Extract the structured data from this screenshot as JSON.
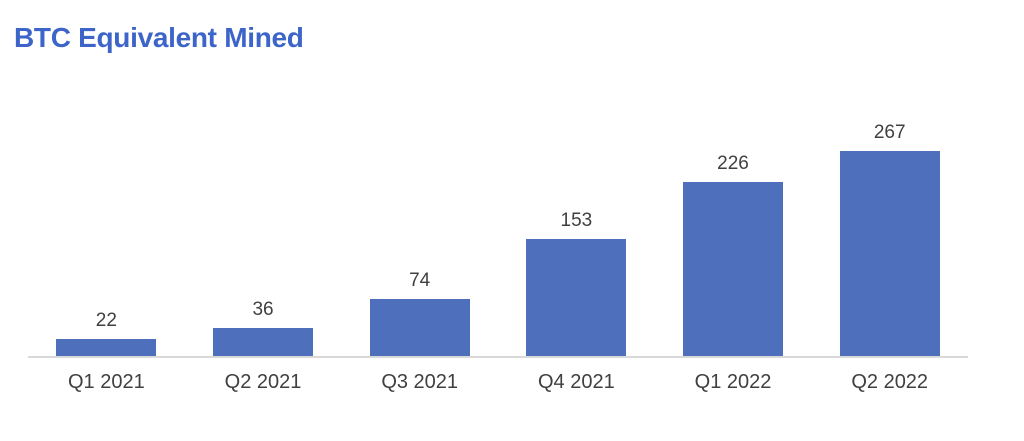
{
  "title": "BTC Equivalent Mined",
  "title_color": "#3d64c8",
  "chart_data": {
    "type": "bar",
    "title": "BTC Equivalent Mined",
    "categories": [
      "Q1 2021",
      "Q2 2021",
      "Q3 2021",
      "Q4 2021",
      "Q1 2022",
      "Q2 2022"
    ],
    "values": [
      22,
      36,
      74,
      153,
      226,
      267
    ],
    "data_labels": [
      22,
      36,
      74,
      153,
      226,
      267
    ],
    "xlabel": "",
    "ylabel": "",
    "ylim": [
      0,
      280
    ],
    "gridlines": false,
    "legend": "none",
    "y_axis_labels_visible": false,
    "bar_color": "#4e70bc",
    "label_color": "#404040",
    "axis_line_color": "#d9d9d9"
  }
}
